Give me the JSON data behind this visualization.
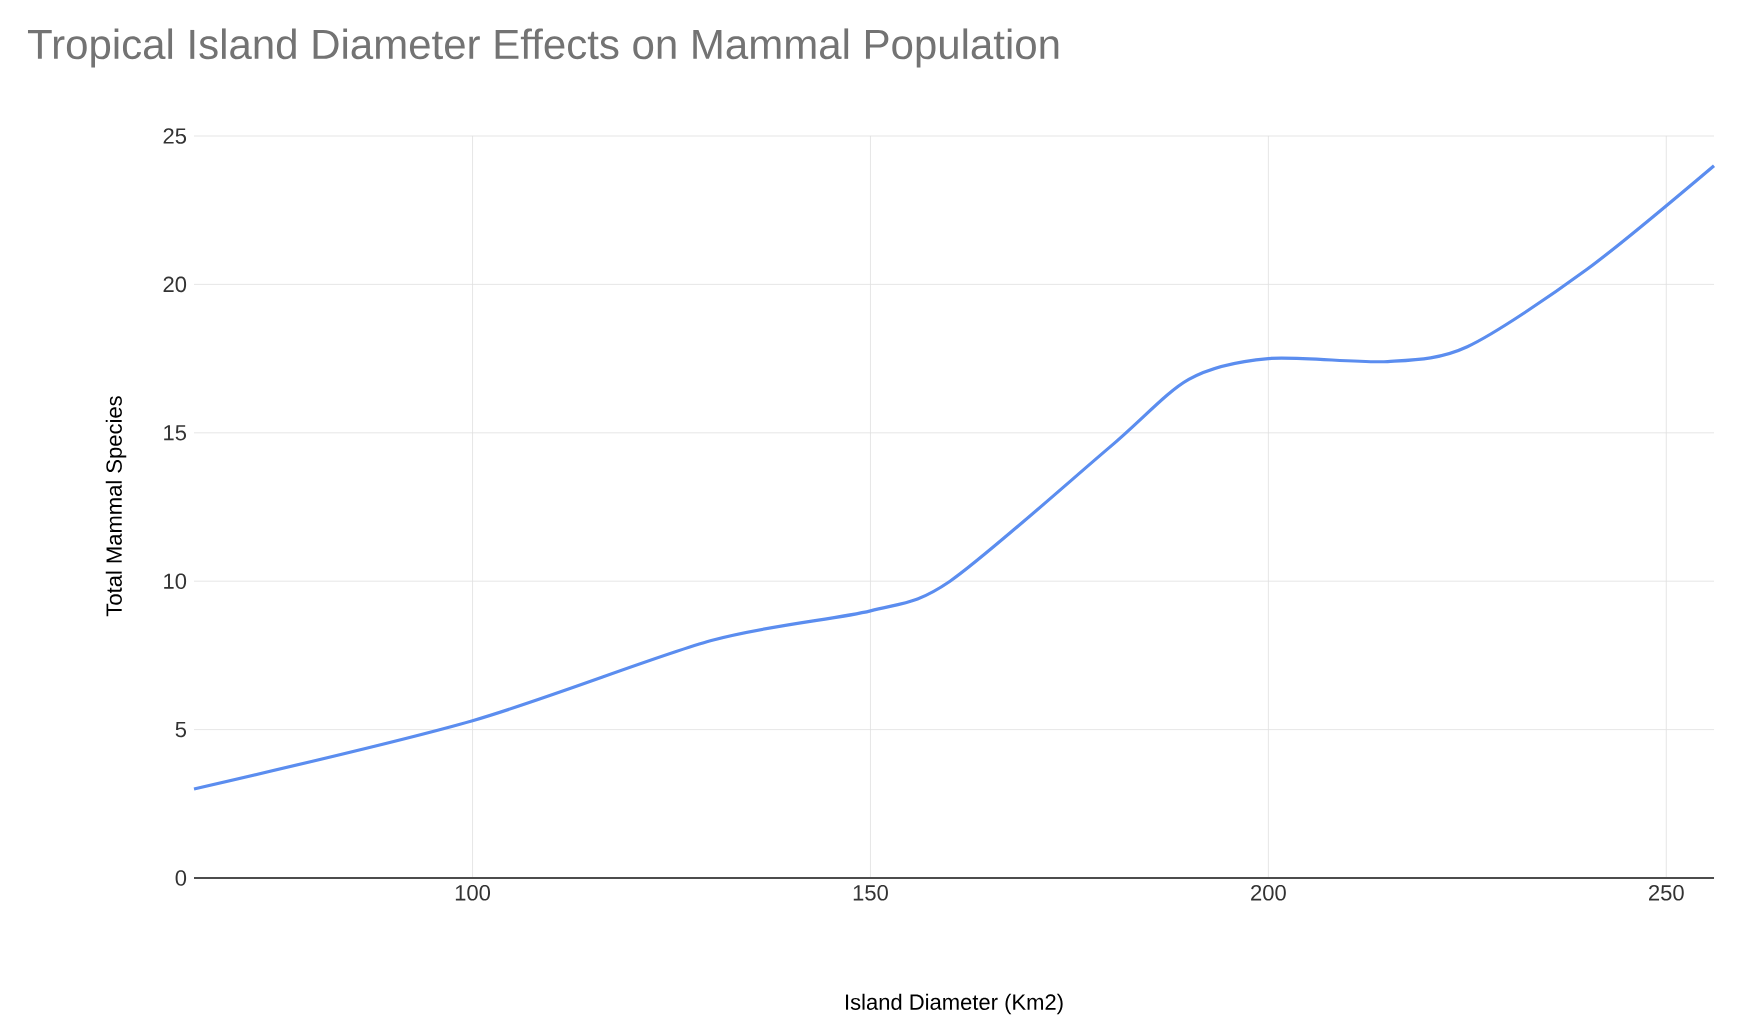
{
  "chart_data": {
    "type": "line",
    "title": "Tropical Island Diameter Effects on Mammal Population",
    "xlabel": "Island Diameter (Km2)",
    "ylabel": "Total Mammal Species",
    "x": [
      65,
      100,
      130,
      150,
      160,
      180,
      190,
      200,
      215,
      225,
      240,
      256
    ],
    "values": [
      3,
      5.3,
      8,
      9,
      10,
      14.5,
      16.8,
      17.5,
      17.4,
      17.9,
      20.5,
      24
    ],
    "color": "#5b8def",
    "xlim": [
      65,
      256
    ],
    "ylim": [
      0,
      25
    ],
    "xticks": [
      100,
      150,
      200,
      250
    ],
    "yticks": [
      0,
      5,
      10,
      15,
      20,
      25
    ],
    "grid": true,
    "marker": "none",
    "line_style": "solid"
  }
}
